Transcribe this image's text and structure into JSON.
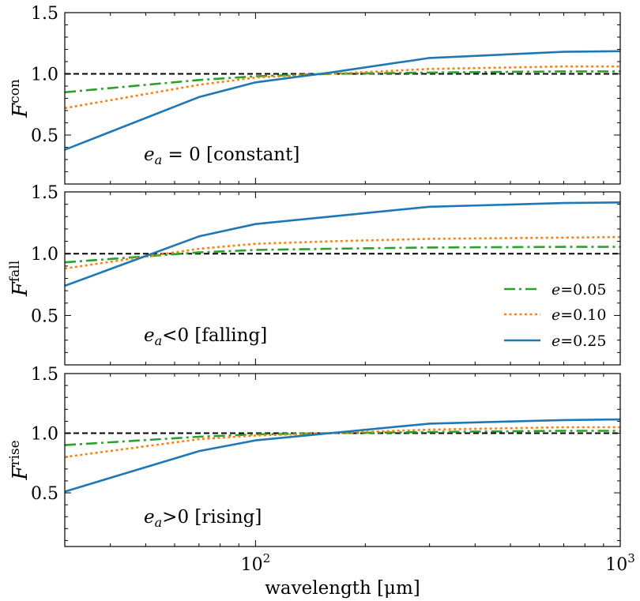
{
  "chart_data": {
    "type": "line",
    "xscale": "log",
    "xlim": [
      30,
      1000
    ],
    "xlabel": "wavelength [μm]",
    "xticks": [
      {
        "value": 100,
        "base": "10",
        "exp": "2"
      },
      {
        "value": 1000,
        "base": "10",
        "exp": "3"
      }
    ],
    "yticks": [
      "0.5",
      "1.0",
      "1.5"
    ],
    "colors": {
      "e005": "#2ca02c",
      "e010": "#ff7f0e",
      "e025": "#1f77b4",
      "reference": "#000000"
    },
    "legend": {
      "position": "lower-right",
      "panel": "fall",
      "entries": [
        {
          "key": "e005",
          "label": "e=0.05",
          "style": "dashdot"
        },
        {
          "key": "e010",
          "label": "e=0.10",
          "style": "dotted"
        },
        {
          "key": "e025",
          "label": "e=0.25",
          "style": "solid"
        }
      ]
    },
    "x": [
      30,
      70,
      100,
      160,
      300,
      700,
      1000
    ],
    "panels": [
      {
        "id": "con",
        "ylabel_base": "F",
        "ylabel_sup": "con",
        "ylim": [
          0.1,
          1.5
        ],
        "reference": 1.0,
        "annotation": {
          "var": "e",
          "sub": "a",
          "rest": " = 0 [constant]"
        },
        "series": [
          {
            "key": "e005",
            "values": [
              0.85,
              0.95,
              0.98,
              1.0,
              1.01,
              1.02,
              1.02
            ]
          },
          {
            "key": "e010",
            "values": [
              0.72,
              0.91,
              0.97,
              1.0,
              1.04,
              1.06,
              1.06
            ]
          },
          {
            "key": "e025",
            "values": [
              0.38,
              0.81,
              0.93,
              1.01,
              1.13,
              1.18,
              1.185
            ]
          }
        ]
      },
      {
        "id": "fall",
        "ylabel_base": "F",
        "ylabel_sup": "fall",
        "ylim": [
          0.1,
          1.5
        ],
        "reference": 1.0,
        "annotation": {
          "var": "e",
          "sub": "a",
          "rest": "<0 [falling]"
        },
        "series": [
          {
            "key": "e005",
            "values": [
              0.93,
              1.01,
              1.03,
              1.04,
              1.05,
              1.055,
              1.055
            ]
          },
          {
            "key": "e010",
            "values": [
              0.88,
              1.04,
              1.08,
              1.1,
              1.12,
              1.13,
              1.135
            ]
          },
          {
            "key": "e025",
            "values": [
              0.74,
              1.14,
              1.24,
              1.3,
              1.38,
              1.41,
              1.415
            ]
          }
        ]
      },
      {
        "id": "rise",
        "ylabel_base": "F",
        "ylabel_sup": "rise",
        "ylim": [
          0.05,
          1.5
        ],
        "reference": 1.0,
        "annotation": {
          "var": "e",
          "sub": "a",
          "rest": ">0 [rising]"
        },
        "series": [
          {
            "key": "e005",
            "values": [
              0.9,
              0.97,
              0.99,
              1.0,
              1.01,
              1.02,
              1.02
            ]
          },
          {
            "key": "e010",
            "values": [
              0.8,
              0.95,
              0.98,
              1.0,
              1.03,
              1.05,
              1.05
            ]
          },
          {
            "key": "e025",
            "values": [
              0.51,
              0.85,
              0.94,
              1.0,
              1.08,
              1.11,
              1.115
            ]
          }
        ]
      }
    ]
  }
}
